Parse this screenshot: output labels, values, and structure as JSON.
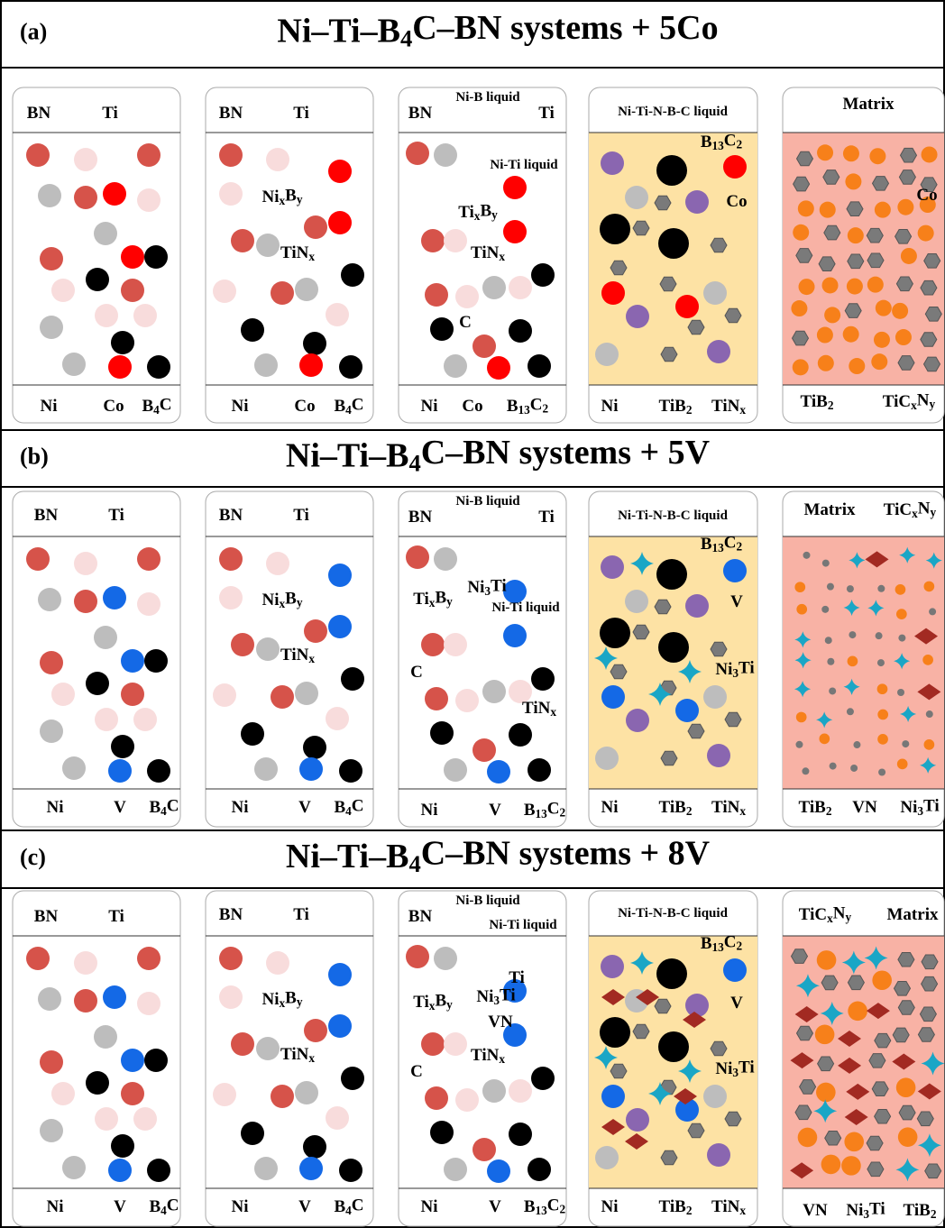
{
  "rows": [
    {
      "label": "(a)",
      "title": [
        "Ni–Ti–B",
        "4",
        "C–BN systems + 5Co"
      ],
      "panels": [
        {
          "labels": [
            [
              "BN"
            ],
            [
              "Ti"
            ],
            [
              "Ni"
            ],
            [
              "Co"
            ],
            [
              "B",
              "4",
              "C"
            ]
          ]
        },
        {
          "labels": [
            [
              "BN"
            ],
            [
              "Ti"
            ],
            [
              "Ni",
              "x",
              "B",
              "y"
            ],
            [
              "TiN",
              "x"
            ],
            [
              "Ni"
            ],
            [
              "Co"
            ],
            [
              "B",
              "4",
              "C"
            ]
          ]
        },
        {
          "labels": [
            [
              "BN"
            ],
            [
              "Ni-B liquid"
            ],
            [
              "Ti"
            ],
            [
              "Ni-Ti liquid"
            ],
            [
              "Ti",
              "x",
              "B",
              "y"
            ],
            [
              "TiN",
              "x"
            ],
            [
              "C"
            ],
            [
              "Ni"
            ],
            [
              "Co"
            ],
            [
              "B",
              "13",
              "C",
              "2"
            ]
          ]
        },
        {
          "labels": [
            [
              "Ni-Ti-N-B-C liquid"
            ],
            [
              "B",
              "13",
              "C",
              "2"
            ],
            [
              "Co"
            ],
            [
              "Ni"
            ],
            [
              "TiB",
              "2"
            ],
            [
              "TiN",
              "x"
            ]
          ]
        },
        {
          "labels": [
            [
              "Matrix"
            ],
            [
              "Co"
            ],
            [
              "TiB",
              "2"
            ],
            [
              "TiC",
              "x",
              "N",
              "y"
            ]
          ]
        }
      ]
    },
    {
      "label": "(b)",
      "title": [
        "Ni–Ti–B",
        "4",
        "C–BN systems + 5V"
      ],
      "panels": [
        {
          "labels": [
            [
              "BN"
            ],
            [
              "Ti"
            ],
            [
              "Ni"
            ],
            [
              "V"
            ],
            [
              "B",
              "4",
              "C"
            ]
          ]
        },
        {
          "labels": [
            [
              "BN"
            ],
            [
              "Ti"
            ],
            [
              "Ni",
              "x",
              "B",
              "y"
            ],
            [
              "TiN",
              "x"
            ],
            [
              "Ni"
            ],
            [
              "V"
            ],
            [
              "B",
              "4",
              "C"
            ]
          ]
        },
        {
          "labels": [
            [
              "Ni-B liquid"
            ],
            [
              "BN"
            ],
            [
              "Ti"
            ],
            [
              "Ni",
              "3",
              "Ti"
            ],
            [
              "Ti",
              "x",
              "B",
              "y"
            ],
            [
              "Ni-Ti liquid"
            ],
            [
              "C"
            ],
            [
              "TiN",
              "x"
            ],
            [
              "Ni"
            ],
            [
              "V"
            ],
            [
              "B",
              "13",
              "C",
              "2"
            ]
          ]
        },
        {
          "labels": [
            [
              "Ni-Ti-N-B-C liquid"
            ],
            [
              "B",
              "13",
              "C",
              "2"
            ],
            [
              "V"
            ],
            [
              "Ni",
              "3",
              "Ti"
            ],
            [
              "Ni"
            ],
            [
              "TiB",
              "2"
            ],
            [
              "TiN",
              "x"
            ]
          ]
        },
        {
          "labels": [
            [
              "Matrix"
            ],
            [
              "TiC",
              "x",
              "N",
              "y"
            ],
            [
              "TiB",
              "2"
            ],
            [
              "VN"
            ],
            [
              "Ni",
              "3",
              "Ti"
            ]
          ]
        }
      ]
    },
    {
      "label": "(c)",
      "title": [
        "Ni–Ti–B",
        "4",
        "C–BN systems + 8V"
      ],
      "panels": [
        {
          "labels": [
            [
              "BN"
            ],
            [
              "Ti"
            ],
            [
              "Ni"
            ],
            [
              "V"
            ],
            [
              "B",
              "4",
              "C"
            ]
          ]
        },
        {
          "labels": [
            [
              "BN"
            ],
            [
              "Ti"
            ],
            [
              "Ni",
              "x",
              "B",
              "y"
            ],
            [
              "TiN",
              "x"
            ],
            [
              "Ni"
            ],
            [
              "V"
            ],
            [
              "B",
              "4",
              "C"
            ]
          ]
        },
        {
          "labels": [
            [
              "Ni-B liquid"
            ],
            [
              "BN"
            ],
            [
              "Ni-Ti liquid"
            ],
            [
              "Ti"
            ],
            [
              "Ni",
              "3",
              "Ti"
            ],
            [
              "Ti",
              "x",
              "B",
              "y"
            ],
            [
              "VN"
            ],
            [
              "TiN",
              "x"
            ],
            [
              "C"
            ],
            [
              "Ni"
            ],
            [
              "V"
            ],
            [
              "B",
              "13",
              "C",
              "2"
            ]
          ]
        },
        {
          "labels": [
            [
              "Ni-Ti-N-B-C liquid"
            ],
            [
              "B",
              "13",
              "C",
              "2"
            ],
            [
              "V"
            ],
            [
              "Ni",
              "3",
              "Ti"
            ],
            [
              "Ni"
            ],
            [
              "TiB",
              "2"
            ],
            [
              "TiN",
              "x"
            ]
          ]
        },
        {
          "labels": [
            [
              "TiC",
              "x",
              "N",
              "y"
            ],
            [
              "Matrix"
            ],
            [
              "VN"
            ],
            [
              "Ni",
              "3",
              "Ti"
            ],
            [
              "TiB",
              "2"
            ]
          ]
        }
      ]
    }
  ]
}
